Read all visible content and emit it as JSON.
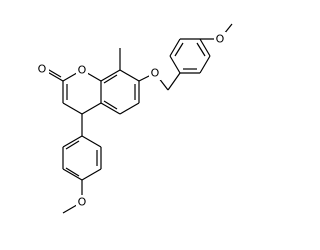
{
  "atoms": [
    {
      "label": "O"
    },
    {
      "label": "O"
    },
    {
      "label": "O"
    },
    {
      "label": "O"
    },
    {
      "label": "O"
    }
  ]
}
